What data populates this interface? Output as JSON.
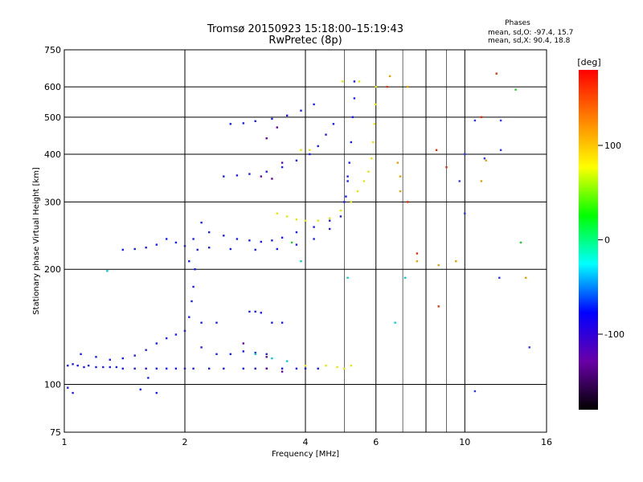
{
  "chart_data": {
    "type": "scatter",
    "title": "Tromsø 20150923 15:18:00–15:19:43",
    "subtitle": "RwPretec (8p)",
    "xlabel": "Frequency [MHz]",
    "ylabel": "Stationary phase Virtual Height [km]",
    "x_scale": "log",
    "y_scale": "log",
    "xlim": [
      1,
      16
    ],
    "ylim": [
      75,
      750
    ],
    "x_ticks": [
      1,
      2,
      4,
      6,
      10,
      16
    ],
    "x_tick_labels": [
      "1",
      "2",
      "4",
      "6",
      "10",
      "16"
    ],
    "x_grid": [
      2,
      4,
      6,
      8,
      10
    ],
    "x_minor_grid": [
      5,
      7,
      9
    ],
    "y_ticks": [
      75,
      100,
      200,
      300,
      400,
      500,
      600,
      750
    ],
    "y_tick_labels": [
      "75",
      "100",
      "200",
      "300",
      "400",
      "500",
      "600",
      "750"
    ],
    "y_grid": [
      100,
      200,
      300,
      400,
      500,
      600
    ],
    "stats": {
      "header": "Phases",
      "line_o": "mean, sd,O: -97.4, 15.7",
      "line_x": "mean, sd,X:  90.4, 18.8"
    },
    "colorbar": {
      "label": "[deg]",
      "range": [
        -180,
        180
      ],
      "tick_values": [
        100,
        0,
        -100
      ],
      "tick_labels": [
        "100",
        "0",
        "-100"
      ],
      "colors": [
        "#000000",
        "#6a00a8",
        "#0000ff",
        "#00ffff",
        "#00ff00",
        "#ffff00",
        "#ff8000",
        "#ff0000"
      ]
    },
    "series": [
      {
        "phase": -100,
        "color": "#1a1aff",
        "points": [
          [
            1.02,
            112
          ],
          [
            1.05,
            113
          ],
          [
            1.08,
            112
          ],
          [
            1.12,
            111
          ],
          [
            1.15,
            112
          ],
          [
            1.2,
            111
          ],
          [
            1.25,
            111
          ],
          [
            1.3,
            111
          ],
          [
            1.35,
            111
          ],
          [
            1.4,
            110
          ],
          [
            1.5,
            110
          ],
          [
            1.6,
            110
          ],
          [
            1.7,
            110
          ],
          [
            1.8,
            110
          ],
          [
            1.9,
            110
          ],
          [
            2.0,
            110
          ],
          [
            2.1,
            110
          ],
          [
            2.3,
            110
          ],
          [
            2.5,
            110
          ],
          [
            2.8,
            110
          ],
          [
            3.0,
            110
          ],
          [
            3.2,
            110
          ],
          [
            3.5,
            110
          ],
          [
            3.8,
            110
          ],
          [
            4.0,
            110
          ],
          [
            4.3,
            110
          ],
          [
            1.1,
            120
          ],
          [
            1.2,
            118
          ],
          [
            1.3,
            116
          ],
          [
            1.4,
            117
          ],
          [
            1.5,
            119
          ],
          [
            1.6,
            123
          ],
          [
            1.7,
            128
          ],
          [
            1.8,
            132
          ],
          [
            1.9,
            135
          ],
          [
            2.0,
            138
          ],
          [
            2.2,
            125
          ],
          [
            2.4,
            120
          ],
          [
            2.6,
            120
          ],
          [
            2.8,
            122
          ],
          [
            3.0,
            121
          ],
          [
            3.2,
            120
          ],
          [
            2.05,
            150
          ],
          [
            2.08,
            165
          ],
          [
            2.1,
            180
          ],
          [
            2.12,
            200
          ],
          [
            2.15,
            225
          ],
          [
            2.2,
            265
          ],
          [
            2.1,
            240
          ],
          [
            2.05,
            210
          ],
          [
            2.3,
            250
          ],
          [
            2.5,
            245
          ],
          [
            2.7,
            240
          ],
          [
            2.9,
            238
          ],
          [
            3.1,
            236
          ],
          [
            3.3,
            238
          ],
          [
            3.5,
            242
          ],
          [
            3.8,
            250
          ],
          [
            4.2,
            258
          ],
          [
            4.6,
            268
          ],
          [
            5.0,
            300
          ],
          [
            5.1,
            340
          ],
          [
            5.15,
            380
          ],
          [
            5.2,
            430
          ],
          [
            5.25,
            500
          ],
          [
            5.3,
            560
          ],
          [
            5.3,
            620
          ],
          [
            2.3,
            228
          ],
          [
            2.6,
            226
          ],
          [
            3.0,
            225
          ],
          [
            3.4,
            226
          ],
          [
            3.8,
            232
          ],
          [
            4.2,
            240
          ],
          [
            4.6,
            255
          ],
          [
            4.9,
            275
          ],
          [
            5.05,
            310
          ],
          [
            5.1,
            350
          ],
          [
            1.4,
            225
          ],
          [
            1.5,
            226
          ],
          [
            1.6,
            228
          ],
          [
            1.7,
            232
          ],
          [
            1.8,
            240
          ],
          [
            1.9,
            235
          ],
          [
            2.0,
            230
          ],
          [
            2.5,
            350
          ],
          [
            2.7,
            352
          ],
          [
            2.9,
            355
          ],
          [
            3.2,
            360
          ],
          [
            3.5,
            370
          ],
          [
            3.8,
            385
          ],
          [
            4.1,
            400
          ],
          [
            4.3,
            420
          ],
          [
            4.5,
            450
          ],
          [
            4.7,
            480
          ],
          [
            2.6,
            480
          ],
          [
            2.8,
            482
          ],
          [
            3.0,
            488
          ],
          [
            3.3,
            495
          ],
          [
            3.6,
            505
          ],
          [
            3.9,
            520
          ],
          [
            4.2,
            540
          ],
          [
            2.9,
            155
          ],
          [
            3.0,
            155
          ],
          [
            3.1,
            154
          ],
          [
            3.3,
            145
          ],
          [
            3.5,
            145
          ],
          [
            2.4,
            145
          ],
          [
            2.2,
            145
          ],
          [
            1.05,
            95
          ],
          [
            1.02,
            98
          ],
          [
            1.55,
            97
          ],
          [
            1.7,
            95
          ],
          [
            1.62,
            104
          ]
        ]
      },
      {
        "phase": 120,
        "color": "#e6e600",
        "points": [
          [
            3.4,
            280
          ],
          [
            3.6,
            275
          ],
          [
            3.8,
            270
          ],
          [
            4.0,
            268
          ],
          [
            4.3,
            268
          ],
          [
            4.6,
            272
          ],
          [
            4.9,
            285
          ],
          [
            5.2,
            300
          ],
          [
            5.4,
            320
          ],
          [
            5.6,
            340
          ],
          [
            5.75,
            360
          ],
          [
            5.85,
            390
          ],
          [
            5.9,
            430
          ],
          [
            5.95,
            480
          ],
          [
            5.98,
            540
          ],
          [
            6.0,
            600
          ],
          [
            3.9,
            410
          ],
          [
            4.1,
            410
          ],
          [
            4.0,
            112
          ],
          [
            4.5,
            112
          ],
          [
            4.8,
            111
          ],
          [
            5.0,
            110
          ],
          [
            5.2,
            112
          ],
          [
            4.95,
            620
          ],
          [
            5.45,
            620
          ]
        ]
      },
      {
        "phase": -140,
        "color": "#6a00a8",
        "points": [
          [
            3.1,
            350
          ],
          [
            3.3,
            345
          ],
          [
            3.5,
            380
          ],
          [
            3.2,
            440
          ],
          [
            3.4,
            470
          ],
          [
            2.8,
            128
          ],
          [
            3.2,
            118
          ],
          [
            3.5,
            108
          ],
          [
            3.2,
            110
          ]
        ]
      },
      {
        "phase": 60,
        "color": "#00d0d0",
        "points": [
          [
            3.0,
            120
          ],
          [
            3.3,
            117
          ],
          [
            3.6,
            115
          ],
          [
            1.28,
            198
          ],
          [
            3.9,
            210
          ],
          [
            5.1,
            190
          ],
          [
            6.7,
            145
          ],
          [
            7.1,
            190
          ]
        ]
      },
      {
        "phase": 160,
        "color": "#e03000",
        "points": [
          [
            6.4,
            600
          ],
          [
            7.2,
            300
          ],
          [
            8.5,
            410
          ],
          [
            9.0,
            370
          ],
          [
            12.0,
            650
          ],
          [
            8.6,
            160
          ],
          [
            11.0,
            500
          ],
          [
            7.6,
            220
          ]
        ]
      },
      {
        "phase": 100,
        "color": "#e6a000",
        "points": [
          [
            6.5,
            640
          ],
          [
            6.8,
            380
          ],
          [
            6.9,
            320
          ],
          [
            6.9,
            350
          ],
          [
            8.6,
            205
          ],
          [
            9.5,
            210
          ],
          [
            11.0,
            340
          ],
          [
            11.3,
            385
          ],
          [
            14.2,
            190
          ],
          [
            7.6,
            210
          ],
          [
            7.2,
            600
          ]
        ]
      },
      {
        "phase": -90,
        "color": "#3030ff",
        "points": [
          [
            10.6,
            490
          ],
          [
            10.0,
            400
          ],
          [
            11.2,
            390
          ],
          [
            12.3,
            410
          ],
          [
            12.3,
            490
          ],
          [
            12.2,
            190
          ],
          [
            14.5,
            125
          ],
          [
            10.0,
            280
          ],
          [
            10.6,
            96
          ],
          [
            9.7,
            340
          ]
        ]
      },
      {
        "phase": 20,
        "color": "#20d020",
        "points": [
          [
            13.4,
            590
          ],
          [
            13.8,
            235
          ],
          [
            3.7,
            235
          ]
        ]
      }
    ]
  }
}
